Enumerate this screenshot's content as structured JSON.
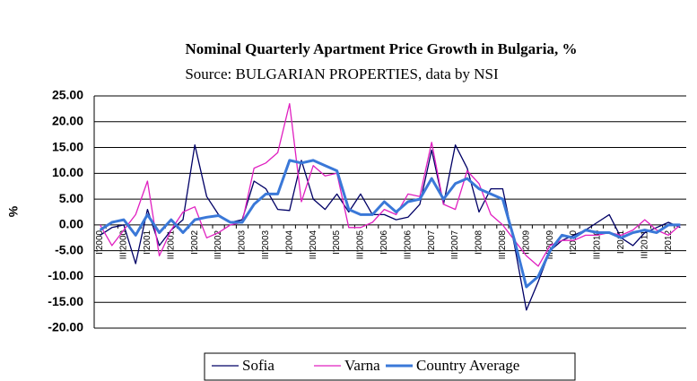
{
  "chart_data": {
    "type": "line",
    "title": "Nominal Quarterly Apartment Price Growth in Bulgaria, %",
    "subtitle": "Source: BULGARIAN PROPERTIES, data by NSI",
    "y_label": "%",
    "categories": [
      "I'2000",
      null,
      "III'2000",
      null,
      "I'2001",
      null,
      "III'2001",
      null,
      "I'2002",
      null,
      "III'2002",
      null,
      "I'2003",
      null,
      "III'2003",
      null,
      "I'2004",
      null,
      "III'2004",
      null,
      "I'2005",
      null,
      "III'2005",
      null,
      "I'2006",
      null,
      "III'2006",
      null,
      "I'2007",
      null,
      "III'2007",
      null,
      "I'2008",
      null,
      "III'2008",
      null,
      "I'2009",
      null,
      "III'2009",
      null,
      "I'2010",
      null,
      "III'2010",
      null,
      "I'2011",
      null,
      "III'2011",
      null,
      "I'2012",
      null
    ],
    "series": [
      {
        "name": "Sofia",
        "color": "#000066",
        "width": 1.3,
        "values": [
          -2,
          -0.5,
          0,
          -7.5,
          3,
          -4,
          -1,
          1,
          15.5,
          5.5,
          2,
          0.5,
          1,
          8.5,
          7,
          3,
          2.8,
          12.5,
          5,
          3,
          6,
          2.5,
          6,
          2,
          2,
          1,
          1.5,
          4,
          14.5,
          4,
          15.5,
          11,
          2.5,
          7,
          7,
          -4,
          -16.5,
          -11,
          -5,
          -3,
          -2,
          -1,
          0.5,
          2,
          -2.5,
          -4,
          -1.5,
          -0.5,
          0.5,
          -0.5
        ]
      },
      {
        "name": "Varna",
        "color": "#e020c0",
        "width": 1.3,
        "values": [
          0,
          -4,
          -1,
          2,
          8.5,
          -6,
          -1,
          2.5,
          3.5,
          -2.5,
          -1.5,
          0,
          0.5,
          11,
          12,
          14,
          23.5,
          4.5,
          11.5,
          9.5,
          10,
          -0.5,
          -0.5,
          0.5,
          3,
          2,
          6,
          5.5,
          16,
          4,
          3,
          10.5,
          8,
          2,
          0,
          -3,
          -6,
          -8,
          -4,
          -3,
          -3,
          -2,
          -2,
          -1.5,
          -2,
          -1,
          1,
          -1,
          -2,
          0
        ]
      },
      {
        "name": "Country Average",
        "color": "#3a78d8",
        "width": 3,
        "values": [
          -1,
          0.5,
          1,
          -2,
          2,
          -1.5,
          1,
          -1.5,
          1,
          1.5,
          1.8,
          0.5,
          0.5,
          4,
          6,
          6,
          12.5,
          12,
          12.5,
          11.5,
          10.5,
          3,
          2,
          2,
          4.5,
          2.5,
          4.5,
          5,
          9,
          5,
          8,
          9,
          7,
          6,
          5,
          -3,
          -12,
          -10,
          -5,
          -2,
          -2.5,
          -1,
          -1.5,
          -1.5,
          -2.5,
          -1.5,
          -1,
          -1.5,
          0,
          0
        ]
      }
    ],
    "ylim": [
      -20,
      25
    ],
    "yticks": [
      {
        "value": -20,
        "label": "-20.00"
      },
      {
        "value": -15,
        "label": "-15.00"
      },
      {
        "value": -10,
        "label": "-10.00"
      },
      {
        "value": -5,
        "label": "-5.00"
      },
      {
        "value": 0,
        "label": "0.00"
      },
      {
        "value": 5,
        "label": "5.00"
      },
      {
        "value": 10,
        "label": "10.00"
      },
      {
        "value": 15,
        "label": "15.00"
      },
      {
        "value": 20,
        "label": "20.00"
      },
      {
        "value": 25,
        "label": "25.00"
      }
    ],
    "grid": true,
    "legend": "bottom"
  }
}
